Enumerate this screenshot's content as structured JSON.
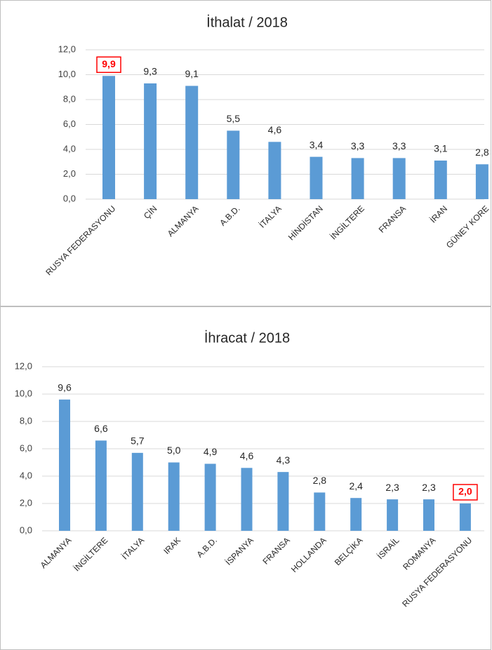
{
  "chart_data": [
    {
      "type": "bar",
      "title": "İthalat / 2018",
      "categories": [
        "RUSYA FEDERASYONU",
        "ÇİN",
        "ALMANYA",
        "A.B.D.",
        "İTALYA",
        "HİNDİSTAN",
        "İNGİLTERE",
        "FRANSA",
        "İRAN",
        "GÜNEY KORE"
      ],
      "values": [
        9.9,
        9.3,
        9.1,
        5.5,
        4.6,
        3.4,
        3.3,
        3.3,
        3.1,
        2.8
      ],
      "value_labels": [
        "9,9",
        "9,3",
        "9,1",
        "5,5",
        "4,6",
        "3,4",
        "3,3",
        "3,3",
        "3,1",
        "2,8"
      ],
      "color": "#5b9bd5",
      "highlight_index": 0,
      "highlight_color": "#ff0000",
      "ylim": [
        0,
        12
      ],
      "yticks": [
        {
          "value": 0,
          "label": "0,0"
        },
        {
          "value": 2,
          "label": "2,0"
        },
        {
          "value": 4,
          "label": "4,0"
        },
        {
          "value": 6,
          "label": "6,0"
        },
        {
          "value": 8,
          "label": "8,0"
        },
        {
          "value": 10,
          "label": "10,0"
        },
        {
          "value": 12,
          "label": "12,0"
        }
      ],
      "grid": true
    },
    {
      "type": "bar",
      "title": "İhracat / 2018",
      "categories": [
        "ALMANYA",
        "İNGİLTERE",
        "İTALYA",
        "IRAK",
        "A.B.D.",
        "İSPANYA",
        "FRANSA",
        "HOLLANDA",
        "BELÇİKA",
        "İSRAİL",
        "ROMANYA",
        "RUSYA FEDERASYONU"
      ],
      "values": [
        9.6,
        6.6,
        5.7,
        5.0,
        4.9,
        4.6,
        4.3,
        2.8,
        2.4,
        2.3,
        2.3,
        2.0
      ],
      "value_labels": [
        "9,6",
        "6,6",
        "5,7",
        "5,0",
        "4,9",
        "4,6",
        "4,3",
        "2,8",
        "2,4",
        "2,3",
        "2,3",
        "2,0"
      ],
      "color": "#5b9bd5",
      "highlight_index": 11,
      "highlight_color": "#ff0000",
      "ylim": [
        0,
        12
      ],
      "yticks": [
        {
          "value": 0,
          "label": "0,0"
        },
        {
          "value": 2,
          "label": "2,0"
        },
        {
          "value": 4,
          "label": "4,0"
        },
        {
          "value": 6,
          "label": "6,0"
        },
        {
          "value": 8,
          "label": "8,0"
        },
        {
          "value": 10,
          "label": "10,0"
        },
        {
          "value": 12,
          "label": "12,0"
        }
      ],
      "grid": true
    }
  ]
}
